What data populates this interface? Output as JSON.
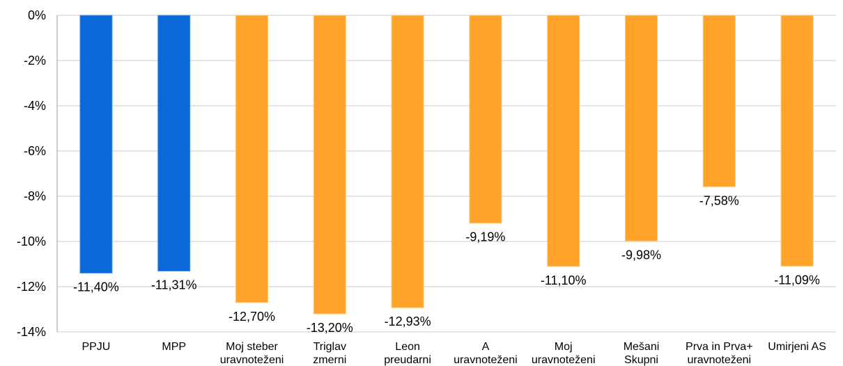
{
  "chart_data": {
    "type": "bar",
    "categories": [
      [
        "PPJU"
      ],
      [
        "MPP"
      ],
      [
        "Moj steber",
        "uravnoteženi"
      ],
      [
        "Triglav",
        "zmerni"
      ],
      [
        "Leon",
        "preudarni"
      ],
      [
        "A",
        "uravnoteženi"
      ],
      [
        "Moj",
        "uravnoteženi"
      ],
      [
        "Mešani",
        "Skupni"
      ],
      [
        "Prva in Prva+",
        "uravnoteženi"
      ],
      [
        "Umirjeni AS"
      ]
    ],
    "values": [
      -11.4,
      -11.31,
      -12.7,
      -13.2,
      -12.93,
      -9.19,
      -11.1,
      -9.98,
      -7.58,
      -11.09
    ],
    "data_labels": [
      "-11,40%",
      "-11,31%",
      "-12,70%",
      "-13,20%",
      "-12,93%",
      "-9,19%",
      "-11,10%",
      "-9,98%",
      "-7,58%",
      "-11,09%"
    ],
    "colors": [
      "#0a68d8",
      "#0a68d8",
      "#ffa32b",
      "#ffa32b",
      "#ffa32b",
      "#ffa32b",
      "#ffa32b",
      "#ffa32b",
      "#ffa32b",
      "#ffa32b"
    ],
    "ylim": [
      -14,
      0
    ],
    "yticks": [
      0,
      -2,
      -4,
      -6,
      -8,
      -10,
      -12,
      -14
    ],
    "ytick_labels": [
      "0%",
      "-2%",
      "-4%",
      "-6%",
      "-8%",
      "-10%",
      "-12%",
      "-14%"
    ],
    "grid": true,
    "legend": "none"
  }
}
